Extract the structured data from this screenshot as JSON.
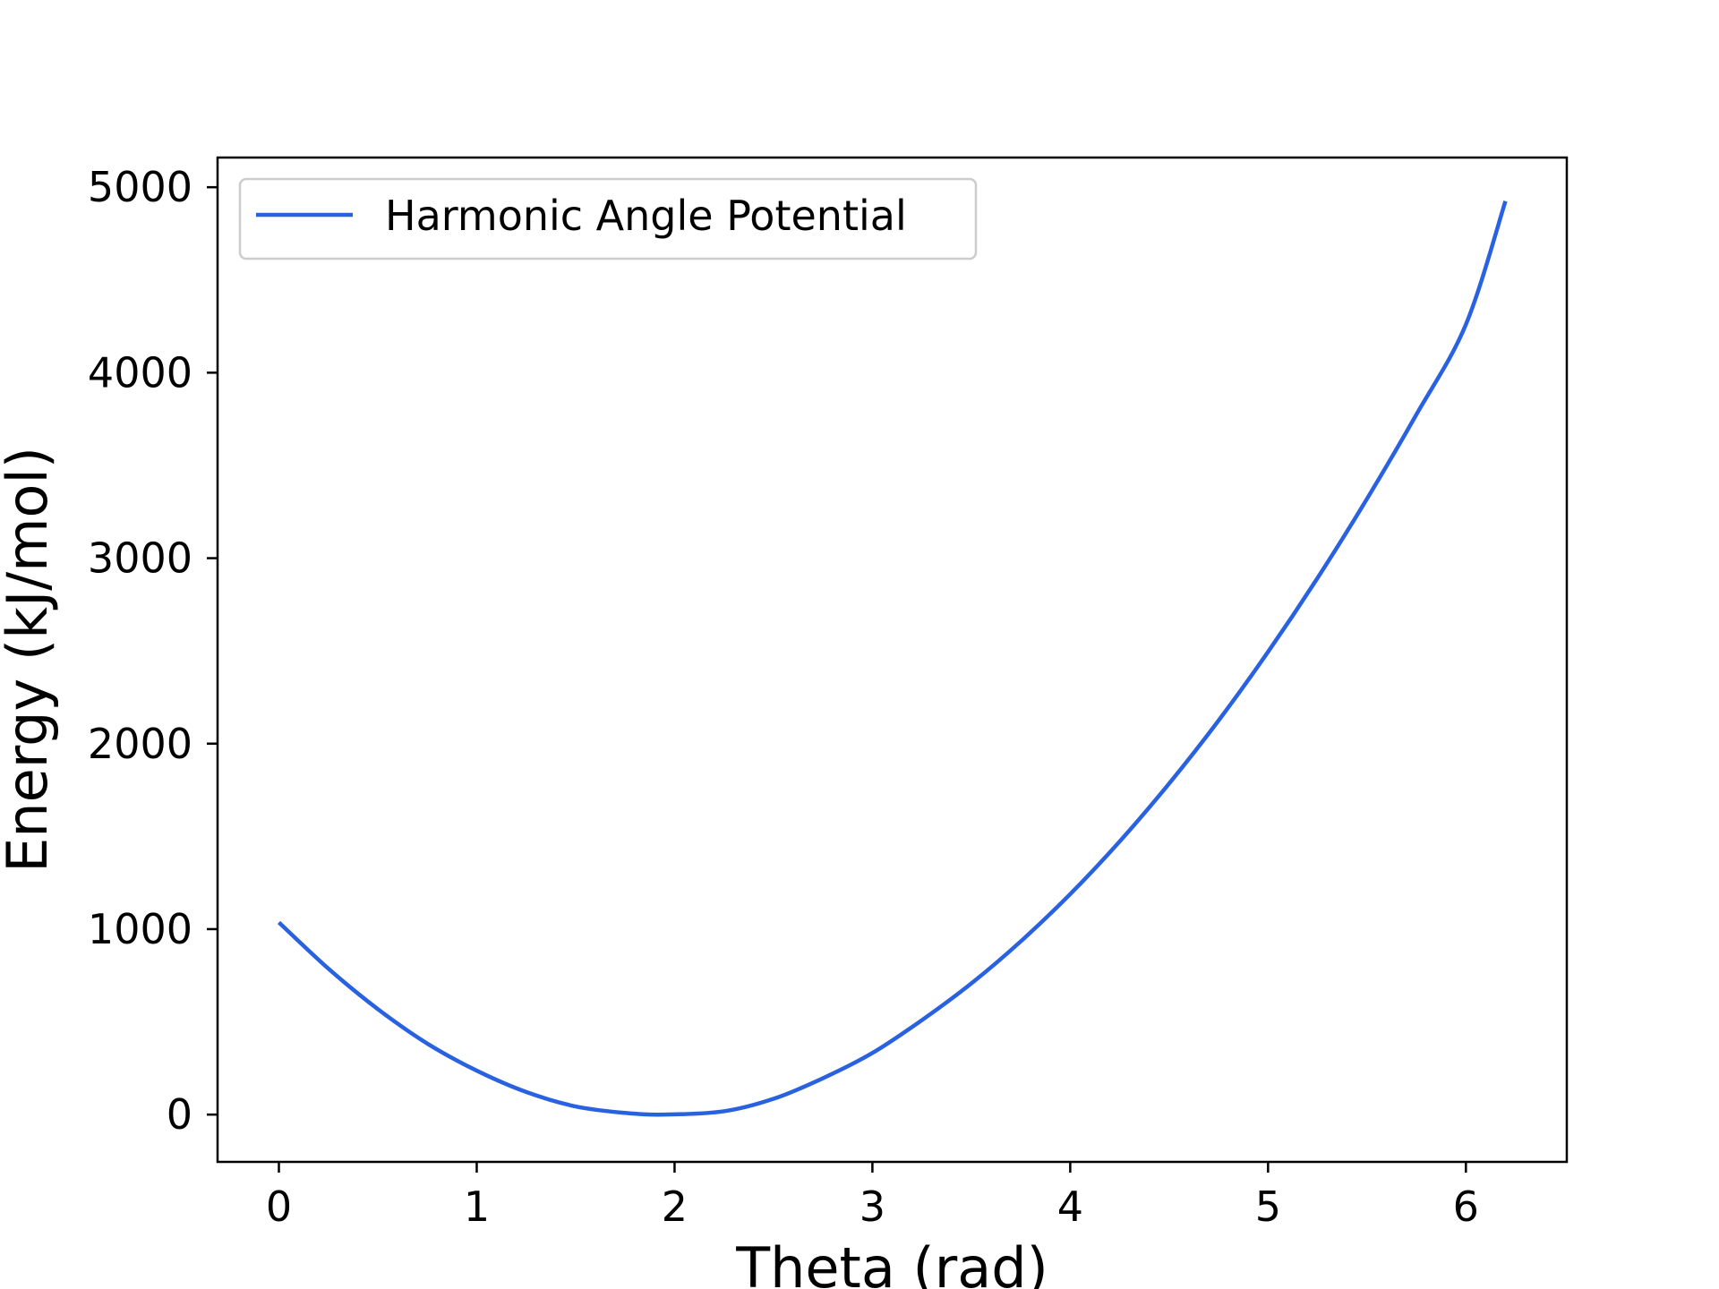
{
  "chart_data": {
    "type": "line",
    "title": "",
    "xlabel": "Theta (rad)",
    "ylabel": "Energy (kJ/mol)",
    "xlim": [
      -0.31,
      6.51
    ],
    "ylim": [
      -255,
      5160
    ],
    "xticks": [
      0,
      1,
      2,
      3,
      4,
      5,
      6
    ],
    "xtick_labels": [
      "0",
      "1",
      "2",
      "3",
      "4",
      "5",
      "6"
    ],
    "yticks": [
      0,
      1000,
      2000,
      3000,
      4000,
      5000
    ],
    "ytick_labels": [
      "0",
      "1000",
      "2000",
      "3000",
      "4000",
      "5000"
    ],
    "grid": false,
    "legend_position": "upper-left",
    "series": [
      {
        "name": "Harmonic Angle Potential",
        "color": "#2962e0",
        "x": [
          0.0,
          0.25,
          0.5,
          0.75,
          1.0,
          1.25,
          1.5,
          1.75,
          1.95,
          2.25,
          2.5,
          2.75,
          3.0,
          3.25,
          3.5,
          3.75,
          4.0,
          4.25,
          4.5,
          4.75,
          5.0,
          5.25,
          5.5,
          5.75,
          6.0,
          6.2
        ],
        "y": [
          1036,
          787,
          569,
          383,
          237,
          122,
          44,
          9,
          0,
          18,
          85,
          196,
          332,
          509,
          707,
          934,
          1189,
          1473,
          1785,
          2125,
          2495,
          2893,
          3320,
          3775,
          4260,
          4925
        ]
      }
    ]
  }
}
